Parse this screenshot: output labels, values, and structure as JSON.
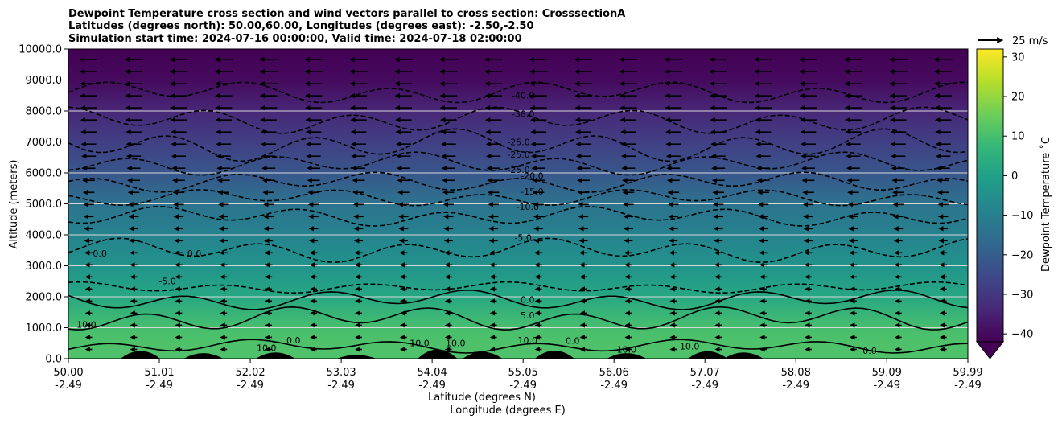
{
  "chart_data": {
    "type": "heatmap",
    "title_lines": [
      "Dewpoint Temperature cross section and wind vectors parallel to cross section: CrosssectionA",
      "Latitudes (degrees north): 50.00,60.00, Longitudes (degrees east): -2.50,-2.50",
      "Simulation start time: 2024-07-16 00:00:00, Valid time: 2024-07-18 02:00:00"
    ],
    "xlabel_lat": "Latitude (degrees N)",
    "xlabel_lon": "Longitude (degrees E)",
    "ylabel": "Altitude (meters)",
    "x_ticks": [
      {
        "lat": "50.00",
        "lon": "-2.49"
      },
      {
        "lat": "51.01",
        "lon": "-2.49"
      },
      {
        "lat": "52.02",
        "lon": "-2.49"
      },
      {
        "lat": "53.03",
        "lon": "-2.49"
      },
      {
        "lat": "54.04",
        "lon": "-2.49"
      },
      {
        "lat": "55.05",
        "lon": "-2.49"
      },
      {
        "lat": "56.06",
        "lon": "-2.49"
      },
      {
        "lat": "57.07",
        "lon": "-2.49"
      },
      {
        "lat": "58.08",
        "lon": "-2.49"
      },
      {
        "lat": "59.09",
        "lon": "-2.49"
      },
      {
        "lat": "59.99",
        "lon": "-2.49"
      }
    ],
    "xlim": [
      50.0,
      59.99
    ],
    "ylim": [
      0,
      10000
    ],
    "y_ticks": [
      "0.0",
      "1000.0",
      "2000.0",
      "3000.0",
      "4000.0",
      "5000.0",
      "6000.0",
      "7000.0",
      "8000.0",
      "9000.0",
      "10000.0"
    ],
    "grid": "horizontal",
    "colorbar": {
      "label": "Dewpoint Temperature ˚C",
      "ticks": [
        "−40",
        "−30",
        "−20",
        "−10",
        "0",
        "10",
        "20",
        "30"
      ],
      "range": [
        -42,
        32
      ],
      "extend": "min",
      "colormap": [
        "#440154",
        "#482878",
        "#3e4989",
        "#31688e",
        "#26828e",
        "#1f9e89",
        "#35b779",
        "#6ece58",
        "#b5de2b",
        "#fde725"
      ]
    },
    "wind_key_label": "25 m/s",
    "contour_labels": [
      "-40.0",
      "-30.0",
      "-25.0",
      "-25.0",
      "-25.0",
      "-20.0",
      "-15.0",
      "-10.0",
      "-5.0",
      "0.0",
      "0.0",
      "0.0",
      "5.0",
      "10.0",
      "10.0",
      "-5.0",
      "10.0",
      "0.0",
      "10.0",
      "10.0",
      "10.0",
      "0.0",
      "10.0",
      "0.0"
    ],
    "dewpoint_profile": [
      {
        "altitude": 500,
        "value": 11
      },
      {
        "altitude": 1000,
        "value": 10
      },
      {
        "altitude": 2000,
        "value": 2
      },
      {
        "altitude": 3000,
        "value": -4
      },
      {
        "altitude": 4000,
        "value": -9
      },
      {
        "altitude": 5000,
        "value": -14
      },
      {
        "altitude": 6000,
        "value": -22
      },
      {
        "altitude": 7000,
        "value": -28
      },
      {
        "altitude": 8000,
        "value": -34
      },
      {
        "altitude": 9000,
        "value": -40
      },
      {
        "altitude": 10000,
        "value": -42
      }
    ],
    "wind_profile": [
      {
        "altitude": 9500,
        "u": -11
      },
      {
        "altitude": 8000,
        "u": -10
      },
      {
        "altitude": 6500,
        "u": -8
      },
      {
        "altitude": 5000,
        "u": -5
      },
      {
        "altitude": 3500,
        "u": -3
      },
      {
        "altitude": 2000,
        "u": -1.5
      },
      {
        "altitude": 500,
        "u": -1
      }
    ]
  }
}
